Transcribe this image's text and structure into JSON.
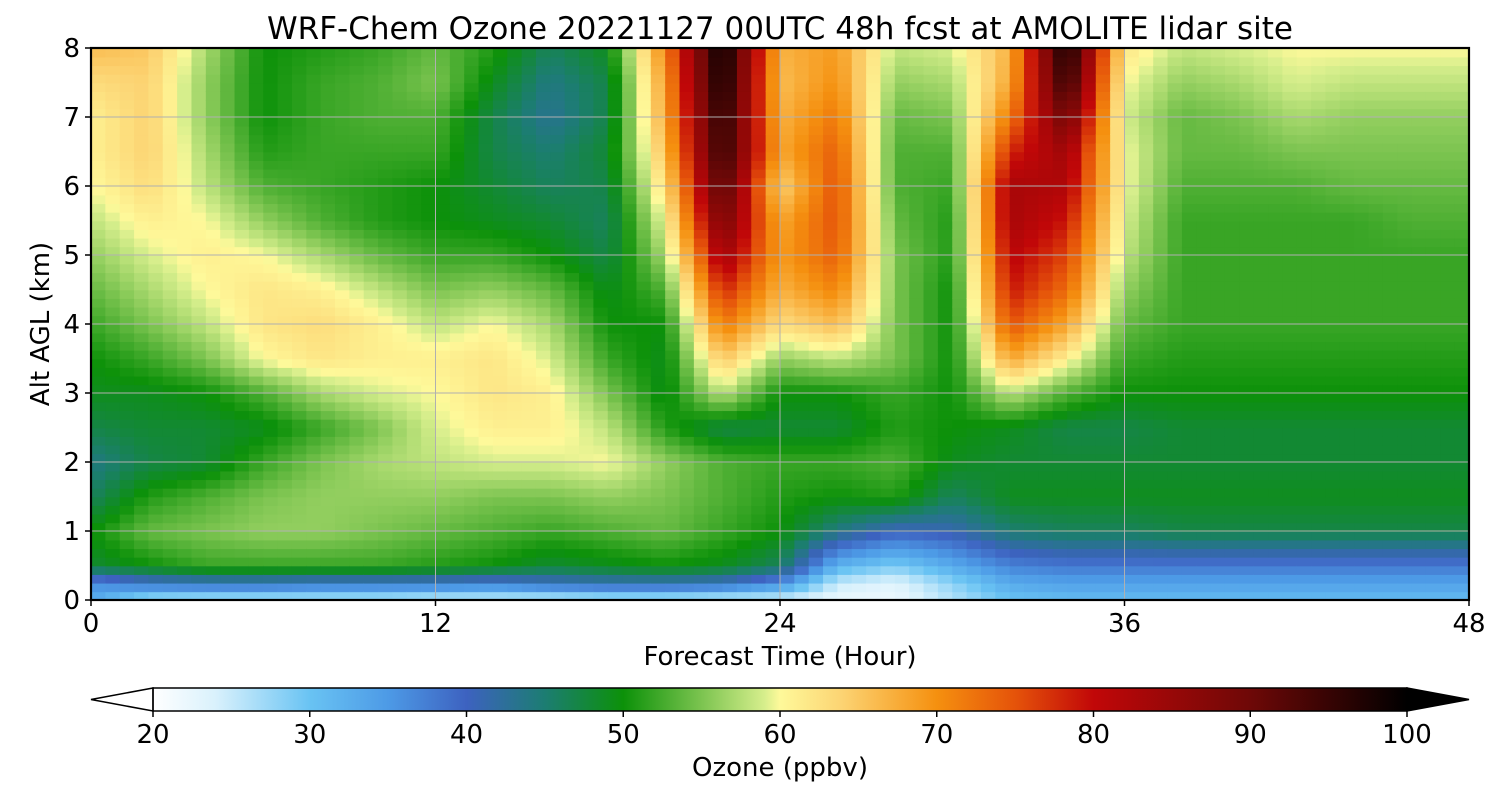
{
  "chart_data": {
    "type": "heatmap",
    "title": "WRF-Chem Ozone  20221127 00UTC 48h fcst at AMOLITE lidar site",
    "xlabel": "Forecast Time (Hour)",
    "ylabel": "Alt AGL (km)",
    "xlim": [
      0,
      48
    ],
    "ylim": [
      0,
      8
    ],
    "x_ticks": [
      "0",
      "12",
      "24",
      "36",
      "48"
    ],
    "y_ticks": [
      "0",
      "1",
      "2",
      "3",
      "4",
      "5",
      "6",
      "7",
      "8"
    ],
    "grid": true,
    "x": [
      0,
      2,
      4,
      6,
      8,
      10,
      12,
      14,
      16,
      18,
      20,
      22,
      24,
      26,
      28,
      30,
      32,
      34,
      36,
      38,
      40,
      42,
      44,
      46,
      48
    ],
    "y": [
      0,
      0.25,
      0.5,
      1,
      1.5,
      2,
      2.5,
      3,
      3.5,
      4,
      4.5,
      5,
      5.5,
      6,
      6.5,
      7,
      7.5,
      8
    ],
    "z_units": "ppbv",
    "z": [
      [
        33,
        26,
        25,
        25,
        25,
        25,
        24,
        24,
        24,
        25,
        25,
        24,
        24,
        22,
        22,
        26,
        30,
        31,
        31,
        31,
        31,
        31,
        31,
        31,
        31
      ],
      [
        36,
        39,
        40,
        40,
        39,
        39,
        39,
        38,
        40,
        41,
        41,
        40,
        36,
        25,
        23,
        28,
        33,
        34,
        34,
        34,
        34,
        34,
        34,
        34,
        34
      ],
      [
        48,
        50,
        52,
        52,
        52,
        52,
        51,
        50,
        48,
        49,
        50,
        49,
        46,
        32,
        29,
        33,
        37,
        38,
        38,
        38,
        38,
        38,
        38,
        38,
        38
      ],
      [
        50,
        54,
        55,
        56,
        56,
        55,
        54,
        53,
        52,
        53,
        54,
        52,
        50,
        44,
        40,
        41,
        45,
        46,
        46,
        47,
        47,
        47,
        47,
        47,
        47
      ],
      [
        46,
        51,
        53,
        55,
        56,
        56,
        56,
        55,
        55,
        56,
        55,
        53,
        51,
        50,
        51,
        46,
        49,
        49,
        49,
        49,
        49,
        49,
        49,
        49,
        49
      ],
      [
        44,
        47,
        48,
        52,
        55,
        57,
        58,
        59,
        59,
        60,
        56,
        53,
        52,
        52,
        53,
        49,
        48,
        48,
        48,
        48,
        48,
        48,
        48,
        48,
        48
      ],
      [
        47,
        48,
        48,
        49,
        52,
        55,
        59,
        61,
        61,
        58,
        51,
        47,
        48,
        48,
        51,
        50,
        49,
        47,
        47,
        48,
        48,
        48,
        48,
        48,
        48
      ],
      [
        49,
        49,
        50,
        53,
        57,
        59,
        60,
        62,
        61,
        55,
        49,
        58,
        50,
        50,
        52,
        50,
        58,
        53,
        50,
        50,
        50,
        50,
        50,
        50,
        50
      ],
      [
        50,
        52,
        55,
        60,
        62,
        61,
        61,
        62,
        59,
        52,
        49,
        65,
        56,
        58,
        55,
        50,
        68,
        61,
        52,
        51,
        51,
        51,
        51,
        51,
        51
      ],
      [
        52,
        55,
        58,
        62,
        63,
        61,
        58,
        60,
        57,
        50,
        50,
        72,
        63,
        66,
        55,
        50,
        75,
        68,
        54,
        52,
        52,
        52,
        52,
        52,
        52
      ],
      [
        54,
        57,
        60,
        62,
        61,
        58,
        55,
        56,
        54,
        49,
        53,
        78,
        67,
        71,
        55,
        50,
        79,
        73,
        56,
        52,
        52,
        52,
        52,
        52,
        52
      ],
      [
        56,
        59,
        61,
        60,
        57,
        54,
        52,
        52,
        50,
        47,
        57,
        84,
        69,
        74,
        55,
        51,
        81,
        76,
        58,
        52,
        52,
        52,
        52,
        52,
        52
      ],
      [
        58,
        61,
        60,
        56,
        53,
        51,
        50,
        49,
        48,
        46,
        60,
        89,
        68,
        75,
        54,
        51,
        83,
        79,
        59,
        52,
        52,
        52,
        52,
        53,
        53
      ],
      [
        60,
        63,
        58,
        53,
        52,
        51,
        50,
        48,
        46,
        47,
        63,
        93,
        64,
        75,
        53,
        52,
        83,
        82,
        60,
        53,
        53,
        53,
        54,
        54,
        54
      ],
      [
        61,
        64,
        57,
        51,
        52,
        52,
        52,
        47,
        45,
        48,
        66,
        96,
        68,
        74,
        53,
        53,
        78,
        84,
        60,
        54,
        54,
        55,
        55,
        55,
        55
      ],
      [
        61,
        64,
        56,
        50,
        52,
        53,
        53,
        47,
        43,
        47,
        68,
        97,
        67,
        72,
        54,
        55,
        72,
        90,
        59,
        54,
        55,
        57,
        56,
        56,
        56
      ],
      [
        63,
        64,
        56,
        50,
        52,
        53,
        55,
        49,
        44,
        47,
        69,
        99,
        66,
        70,
        56,
        57,
        68,
        96,
        60,
        56,
        57,
        59,
        58,
        58,
        58
      ],
      [
        66,
        65,
        57,
        50,
        51,
        52,
        54,
        51,
        46,
        49,
        71,
        100,
        67,
        69,
        58,
        59,
        67,
        99,
        62,
        58,
        59,
        60,
        60,
        60,
        60
      ]
    ],
    "colorbar": {
      "label": "Ozone  (ppbv)",
      "ticks": [
        "20",
        "30",
        "40",
        "50",
        "60",
        "70",
        "80",
        "90",
        "100"
      ],
      "range": [
        20,
        100
      ],
      "extend": "both",
      "colormap_stops": [
        {
          "v": 20,
          "c": "#ffffff"
        },
        {
          "v": 24,
          "c": "#d9f1fc"
        },
        {
          "v": 30,
          "c": "#69c3f3"
        },
        {
          "v": 35,
          "c": "#4d9ae6"
        },
        {
          "v": 40,
          "c": "#3d62c0"
        },
        {
          "v": 45,
          "c": "#1c7d72"
        },
        {
          "v": 50,
          "c": "#0c9109"
        },
        {
          "v": 55,
          "c": "#7cc450"
        },
        {
          "v": 59,
          "c": "#d6ee8c"
        },
        {
          "v": 60,
          "c": "#fef99a"
        },
        {
          "v": 64,
          "c": "#fcd372"
        },
        {
          "v": 70,
          "c": "#f5900f"
        },
        {
          "v": 75,
          "c": "#e5530a"
        },
        {
          "v": 80,
          "c": "#c10708"
        },
        {
          "v": 90,
          "c": "#6e0807"
        },
        {
          "v": 100,
          "c": "#000000"
        }
      ]
    }
  }
}
